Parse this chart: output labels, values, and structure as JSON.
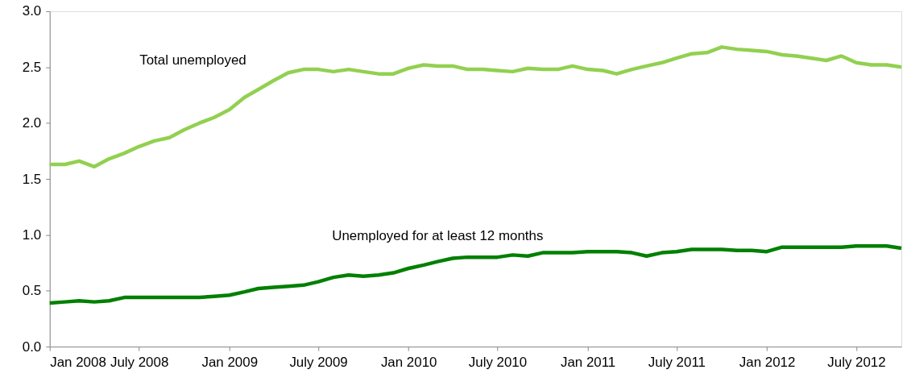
{
  "chart_data": {
    "type": "line",
    "x": [
      "2008-01",
      "2008-02",
      "2008-03",
      "2008-04",
      "2008-05",
      "2008-06",
      "2008-07",
      "2008-08",
      "2008-09",
      "2008-10",
      "2008-11",
      "2008-12",
      "2009-01",
      "2009-02",
      "2009-03",
      "2009-04",
      "2009-05",
      "2009-06",
      "2009-07",
      "2009-08",
      "2009-09",
      "2009-10",
      "2009-11",
      "2009-12",
      "2010-01",
      "2010-02",
      "2010-03",
      "2010-04",
      "2010-05",
      "2010-06",
      "2010-07",
      "2010-08",
      "2010-09",
      "2010-10",
      "2010-11",
      "2010-12",
      "2011-01",
      "2011-02",
      "2011-03",
      "2011-04",
      "2011-05",
      "2011-06",
      "2011-07",
      "2011-08",
      "2011-09",
      "2011-10",
      "2011-11",
      "2011-12",
      "2012-01",
      "2012-02",
      "2012-03",
      "2012-04",
      "2012-05",
      "2012-06",
      "2012-07",
      "2012-08",
      "2012-09",
      "2012-10"
    ],
    "series": [
      {
        "name": "Total unemployed",
        "color": "#92d050",
        "values": [
          1.63,
          1.63,
          1.66,
          1.61,
          1.68,
          1.73,
          1.79,
          1.84,
          1.87,
          1.94,
          2.0,
          2.05,
          2.12,
          2.23,
          2.3,
          2.38,
          2.45,
          2.48,
          2.48,
          2.46,
          2.48,
          2.46,
          2.44,
          2.44,
          2.49,
          2.52,
          2.51,
          2.51,
          2.48,
          2.48,
          2.47,
          2.46,
          2.49,
          2.48,
          2.48,
          2.51,
          2.48,
          2.47,
          2.44,
          2.48,
          2.51,
          2.54,
          2.58,
          2.62,
          2.63,
          2.68,
          2.66,
          2.65,
          2.64,
          2.61,
          2.6,
          2.58,
          2.56,
          2.6,
          2.54,
          2.52,
          2.52,
          2.5
        ]
      },
      {
        "name": "Unemployed for at least 12 months",
        "color": "#008000",
        "values": [
          0.39,
          0.4,
          0.41,
          0.4,
          0.41,
          0.44,
          0.44,
          0.44,
          0.44,
          0.44,
          0.44,
          0.45,
          0.46,
          0.49,
          0.52,
          0.53,
          0.54,
          0.55,
          0.58,
          0.62,
          0.64,
          0.63,
          0.64,
          0.66,
          0.7,
          0.73,
          0.76,
          0.79,
          0.8,
          0.8,
          0.8,
          0.82,
          0.81,
          0.84,
          0.84,
          0.84,
          0.85,
          0.85,
          0.85,
          0.84,
          0.81,
          0.84,
          0.85,
          0.87,
          0.87,
          0.87,
          0.86,
          0.86,
          0.85,
          0.89,
          0.89,
          0.89,
          0.89,
          0.89,
          0.9,
          0.9,
          0.9,
          0.88
        ]
      }
    ],
    "xlim": [
      "2008-01",
      "2012-10"
    ],
    "xticks": [
      {
        "value": "2008-01",
        "label": "Jan 2008"
      },
      {
        "value": "2008-07",
        "label": "July 2008"
      },
      {
        "value": "2009-01",
        "label": "Jan 2009"
      },
      {
        "value": "2009-07",
        "label": "July 2009"
      },
      {
        "value": "2010-01",
        "label": "Jan 2010"
      },
      {
        "value": "2010-07",
        "label": "July 2010"
      },
      {
        "value": "2011-01",
        "label": "Jan 2011"
      },
      {
        "value": "2011-07",
        "label": "July 2011"
      },
      {
        "value": "2012-01",
        "label": "Jan 2012"
      },
      {
        "value": "2012-07",
        "label": "July 2012"
      }
    ],
    "ylim": [
      0,
      3
    ],
    "yticks": [
      {
        "value": 0,
        "label": "0.0"
      },
      {
        "value": 0.5,
        "label": "0.5"
      },
      {
        "value": 1,
        "label": "1.0"
      },
      {
        "value": 1.5,
        "label": "1.5"
      },
      {
        "value": 2,
        "label": "2.0"
      },
      {
        "value": 2.5,
        "label": "2.5"
      },
      {
        "value": 3,
        "label": "3.0"
      }
    ],
    "grid": false,
    "legend": false,
    "marker": "none",
    "line_style": "solid"
  }
}
